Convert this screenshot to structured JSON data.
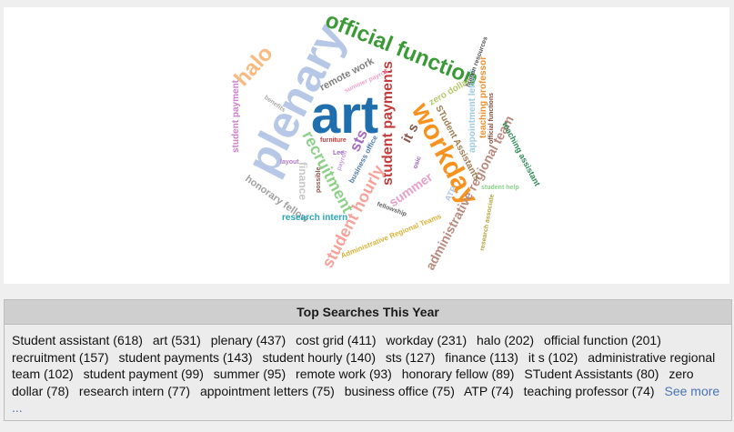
{
  "cloud": {
    "words": [
      {
        "text": "art",
        "color": "#1f6fae"
      },
      {
        "text": "plenary",
        "color": "#b7c8e6"
      },
      {
        "text": "official function",
        "color": "#3a9a36"
      },
      {
        "text": "workday",
        "color": "#f7921e"
      },
      {
        "text": "student payments",
        "color": "#c43b3b"
      },
      {
        "text": "recruitment",
        "color": "#8fd089"
      },
      {
        "text": "student hourly",
        "color": "#f6a29a"
      },
      {
        "text": "halo",
        "color": "#fbb97e"
      },
      {
        "text": "administrative regional team",
        "color": "#b88a7b"
      },
      {
        "text": "STudent Assistants",
        "color": "#9f7b4f"
      },
      {
        "text": "finance",
        "color": "#c7c7c7"
      },
      {
        "text": "sts",
        "color": "#a56dbf"
      },
      {
        "text": "it s",
        "color": "#8c564b"
      },
      {
        "text": "summer",
        "color": "#e7a0cc"
      },
      {
        "text": "student payment",
        "color": "#d07ccf"
      },
      {
        "text": "remote work",
        "color": "#7f7f7f"
      },
      {
        "text": "honorary fellow",
        "color": "#a0a0a0"
      },
      {
        "text": "teaching professor",
        "color": "#f28e2c"
      },
      {
        "text": "appointment letters",
        "color": "#9ecae1"
      },
      {
        "text": "research intern",
        "color": "#2aa6b7"
      },
      {
        "text": "zero dollar",
        "color": "#b6c96b"
      },
      {
        "text": "business office",
        "color": "#4e79a7"
      },
      {
        "text": "human resources",
        "color": "#555555"
      },
      {
        "text": "official functions",
        "color": "#7b4b40"
      },
      {
        "text": "teaching assistant",
        "color": "#2e8b57"
      },
      {
        "text": "research associate",
        "color": "#b4a23a"
      },
      {
        "text": "Administrative Regional Teams",
        "color": "#d8b43a"
      },
      {
        "text": "summer payroll",
        "color": "#f2a3c8"
      },
      {
        "text": "furniture",
        "color": "#c23b3b"
      },
      {
        "text": "layout",
        "color": "#b07cc6"
      },
      {
        "text": "payroll",
        "color": "#c9a0dc"
      },
      {
        "text": "Lee",
        "color": "#9467bd"
      },
      {
        "text": "fellowship",
        "color": "#666666"
      },
      {
        "text": "student help",
        "color": "#8bd18b"
      },
      {
        "text": "possible",
        "color": "#8c564b"
      },
      {
        "text": "ATP",
        "color": "#aec7e8"
      },
      {
        "text": "osic",
        "color": "#9b59b6"
      },
      {
        "text": "benefits",
        "color": "#aaaaaa"
      }
    ]
  },
  "searches": {
    "title": "Top Searches This Year",
    "items": [
      "Student assistant (618)",
      "art (531)",
      "plenary (437)",
      "cost grid (411)",
      "workday (231)",
      "halo (202)",
      "official function (201)",
      "recruitment (157)",
      "student payments (143)",
      "student hourly (140)",
      "sts (127)",
      "finance (113)",
      "it s (102)",
      "administrative regional team (102)",
      "student payment (99)",
      "summer (95)",
      "remote work (93)",
      "honorary fellow (89)",
      "STudent Assistants (80)",
      "zero dollar (78)",
      "research intern (77)",
      "appointment letters (75)",
      "business office (75)",
      "ATP (74)",
      "teaching professor (74)"
    ],
    "see_more_label": "See more ..."
  }
}
